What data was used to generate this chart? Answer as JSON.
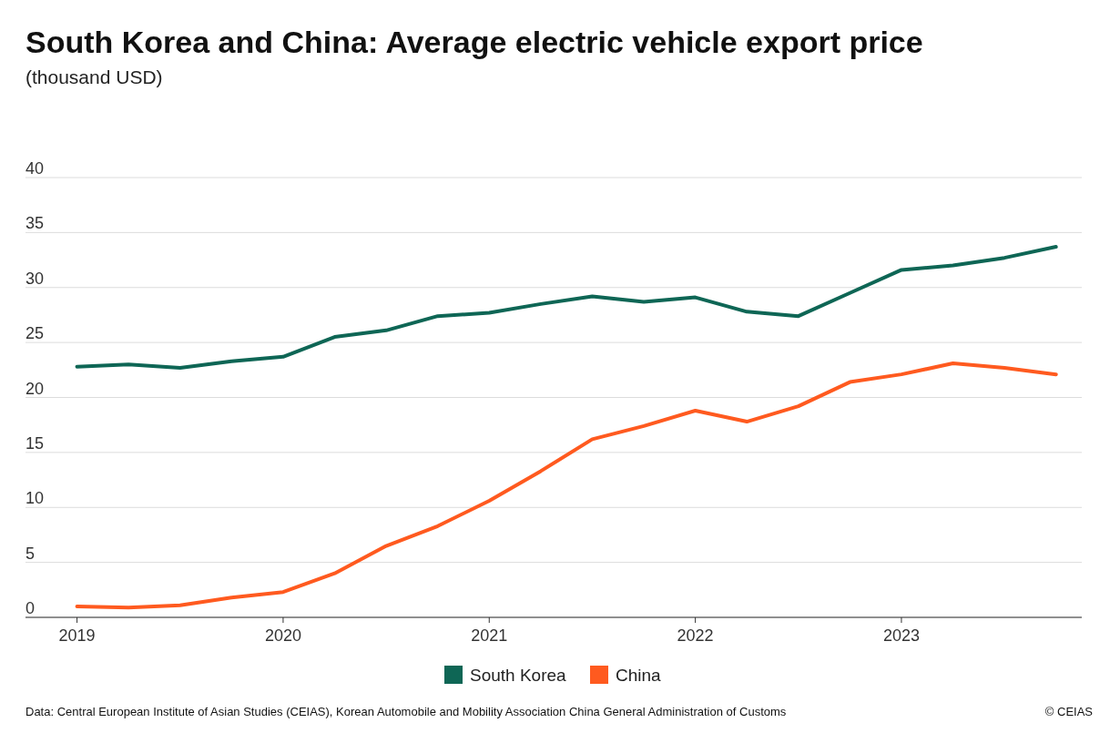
{
  "chart_data": {
    "type": "line",
    "title": "South Korea and China: Average electric vehicle export price",
    "subtitle": "(thousand USD)",
    "x": [
      2019,
      2019.25,
      2019.5,
      2019.75,
      2020,
      2020.25,
      2020.5,
      2020.75,
      2021,
      2021.25,
      2021.5,
      2021.75,
      2022,
      2022.25,
      2022.5,
      2022.75,
      2023,
      2023.25,
      2023.5,
      2023.75
    ],
    "series": [
      {
        "name": "South Korea",
        "color": "#0e6655",
        "values": [
          22.8,
          23.0,
          22.7,
          23.3,
          23.7,
          25.5,
          26.1,
          27.4,
          27.7,
          28.5,
          29.2,
          28.7,
          29.1,
          27.8,
          27.4,
          29.5,
          31.6,
          32.0,
          32.7,
          33.7
        ]
      },
      {
        "name": "China",
        "color": "#ff5a1f",
        "values": [
          1.0,
          0.9,
          1.1,
          1.8,
          2.3,
          4.0,
          6.5,
          8.3,
          10.6,
          13.3,
          16.2,
          17.4,
          18.8,
          17.8,
          19.2,
          21.4,
          22.1,
          23.1,
          22.7,
          22.1
        ]
      }
    ],
    "xlim": [
      2018.75,
      2023.875
    ],
    "xticks": [
      2019,
      2020,
      2021,
      2022,
      2023
    ],
    "ylim": [
      0,
      40
    ],
    "yticks": [
      0,
      5,
      10,
      15,
      20,
      25,
      30,
      35,
      40
    ],
    "grid": "y",
    "legend": "bottom",
    "marker": "none",
    "line_style": "solid",
    "annotations": [
      "Data: Central European Institute of Asian Studies (CEIAS), Korean Automobile and Mobility Association China General Administration of Customs",
      "© CEIAS"
    ]
  }
}
